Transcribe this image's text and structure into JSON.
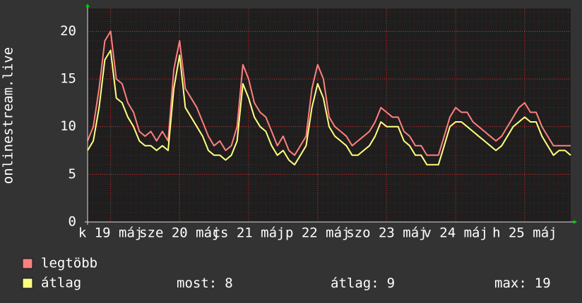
{
  "chart_data": {
    "type": "line",
    "y_label": "onlinestream.live",
    "x": [
      0,
      2,
      4,
      6,
      8,
      10,
      12,
      14,
      16,
      18,
      20,
      22,
      24,
      26,
      28,
      30,
      32,
      34,
      36,
      38,
      40,
      42,
      44,
      46,
      48,
      50,
      52,
      54,
      56,
      58,
      60,
      62,
      64,
      66,
      68,
      70,
      72,
      74,
      76,
      78,
      80,
      82,
      84,
      86,
      88,
      90,
      92,
      94,
      96,
      98,
      100,
      102,
      104,
      106,
      108,
      110,
      112,
      114,
      116,
      118,
      120,
      122,
      124,
      126,
      128,
      130,
      132,
      134,
      136,
      138,
      140,
      142,
      144,
      146,
      148,
      150,
      152,
      154,
      156,
      158,
      160,
      162,
      164,
      166,
      168
    ],
    "xlim": [
      0,
      168
    ],
    "xticks": [
      {
        "value": 8,
        "label": "k 19 máj"
      },
      {
        "value": 32,
        "label": "sze 20 máj"
      },
      {
        "value": 56,
        "label": "cs 21 máj"
      },
      {
        "value": 80,
        "label": "p 22 máj"
      },
      {
        "value": 104,
        "label": "szo 23 máj"
      },
      {
        "value": 128,
        "label": "v 24 máj"
      },
      {
        "value": 152,
        "label": "h 25 máj"
      }
    ],
    "ylim": [
      0,
      22.4
    ],
    "yticks": [
      0,
      5,
      10,
      15,
      20
    ],
    "grid": true,
    "series": [
      {
        "name": "legtöbb",
        "color": "#ff7f7f",
        "values": [
          8.5,
          10,
          14,
          19,
          20,
          15,
          14.5,
          12.5,
          11.5,
          9.5,
          9,
          9.5,
          8.5,
          9.5,
          8.5,
          16,
          19,
          14,
          13,
          12,
          10.5,
          9,
          8,
          8.5,
          7.5,
          8,
          10,
          16.5,
          15,
          12.5,
          11.5,
          11,
          9.5,
          8,
          9,
          7.5,
          7,
          8,
          9,
          14,
          16.5,
          15,
          11,
          10,
          9.5,
          9,
          8,
          8.5,
          9,
          9.5,
          10.5,
          12,
          11.5,
          11,
          11,
          9.5,
          9,
          8,
          8,
          7,
          7,
          7,
          9,
          11,
          12,
          11.5,
          11.5,
          10.5,
          10,
          9.5,
          9,
          8.5,
          9,
          10,
          11,
          12,
          12.5,
          11.5,
          11.5,
          10,
          9,
          8,
          8,
          8,
          8
        ]
      },
      {
        "name": "átlag",
        "color": "#ffff7f",
        "values": [
          7.5,
          8.5,
          12,
          17,
          18,
          13,
          12.5,
          11,
          10,
          8.5,
          8,
          8,
          7.5,
          8,
          7.5,
          14,
          17.5,
          12,
          11,
          10,
          9,
          7.5,
          7,
          7,
          6.5,
          7,
          8.5,
          14.5,
          13,
          11,
          10,
          9.5,
          8,
          7,
          7.5,
          6.5,
          6,
          7,
          8,
          12,
          14.5,
          13,
          10,
          9,
          8.5,
          8,
          7,
          7,
          7.5,
          8,
          9,
          10.5,
          10,
          10,
          10,
          8.5,
          8,
          7,
          7,
          6,
          6,
          6,
          8,
          10,
          10.5,
          10.5,
          10,
          9.5,
          9,
          8.5,
          8,
          7.5,
          8,
          9,
          10,
          10.5,
          11,
          10.5,
          10.5,
          9,
          8,
          7,
          7.5,
          7.5,
          7
        ]
      }
    ],
    "stats": [
      {
        "label": "most:",
        "value": 8
      },
      {
        "label": "átlag:",
        "value": 9
      },
      {
        "label": "max:",
        "value": 19
      }
    ]
  }
}
